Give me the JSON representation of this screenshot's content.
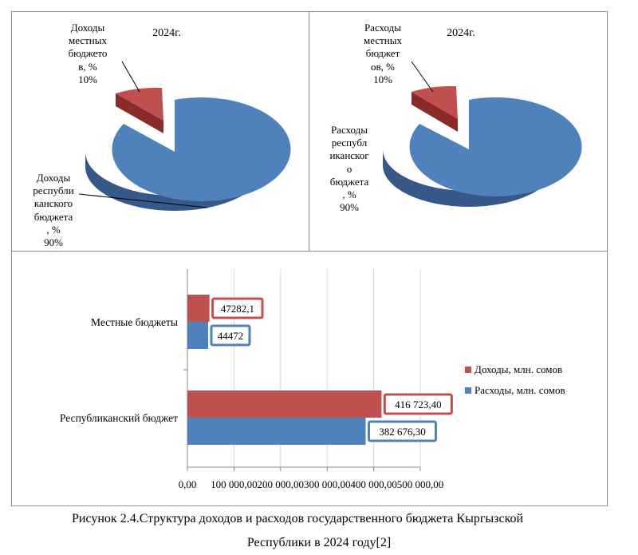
{
  "colors": {
    "blue": "#4f81bd",
    "blue_dark": "#36598a",
    "red": "#c0504d",
    "red_dark": "#8b2b29",
    "grid": "#d9d9d9",
    "border": "#8c8c8c"
  },
  "chart_data": [
    {
      "type": "pie",
      "title": "2024г.",
      "categories": [
        "Доходы местных бюджетов, %",
        "Доходы республиканского бюджета, %"
      ],
      "values": [
        10,
        90
      ],
      "labels": [
        {
          "lines": [
            "Доходы",
            "местных",
            "бюджето",
            "в, %",
            "10%"
          ]
        },
        {
          "lines": [
            "Доходы",
            "республи",
            "канского",
            "бюджета",
            ", %",
            "90%"
          ]
        }
      ]
    },
    {
      "type": "pie",
      "title": "2024г.",
      "categories": [
        "Расходы местных бюджетов, %",
        "Расходы республиканского бюджета, %"
      ],
      "values": [
        10,
        90
      ],
      "labels": [
        {
          "lines": [
            "Расходы",
            "местных",
            "бюджет",
            "ов, %",
            "10%"
          ]
        },
        {
          "lines": [
            "Расходы",
            "республ",
            "иканског",
            "о",
            "бюджета",
            ", %",
            "90%"
          ]
        }
      ]
    },
    {
      "type": "bar",
      "orientation": "horizontal",
      "categories": [
        "Местные бюджеты",
        "Республиканский бюджет"
      ],
      "series": [
        {
          "name": "Доходы, млн. сомов",
          "values": [
            47282.1,
            416723.4
          ],
          "labels": [
            "47282,1",
            "416 723,40"
          ]
        },
        {
          "name": "Расходы, млн. сомов",
          "values": [
            44472,
            382676.3
          ],
          "labels": [
            "44472",
            "382 676,30"
          ]
        }
      ],
      "xlim": [
        0,
        500000
      ],
      "xticks": [
        "0,00",
        "100 000,00",
        "200 000,00",
        "300 000,00",
        "400 000,00",
        "500 000,00"
      ],
      "legend": "right",
      "grid": true
    }
  ],
  "caption": {
    "line1": "Рисунок 2.4.Структура доходов и расходов государственного бюджета Кыргызской",
    "line2": "Республики в 2024 году[2]"
  }
}
